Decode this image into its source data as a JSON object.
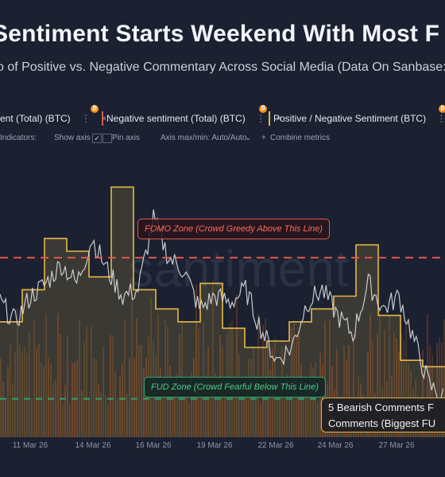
{
  "header": {
    "title": "Sentiment Starts Weekend With Most F",
    "subtitle": "o of Positive vs. Negative Commentary Across Social Media (Data On Sanbase: h"
  },
  "metrics": [
    {
      "label": "ent (Total) (BTC)",
      "accent": "#e8a23a"
    },
    {
      "label": "Negative sentiment (Total) (BTC)",
      "accent": "#e0584c"
    },
    {
      "label": "Positive / Negative Sentiment (BTC)",
      "accent": "#e8b84a"
    }
  ],
  "options": {
    "indicators": "Indicators:",
    "show_axis": "Show axis",
    "pin_axis": "Pin axis",
    "axis_maxmin": "Axis max/min: Auto/Auto",
    "combine": "Combine metrics",
    "check_mark": "✓"
  },
  "annotations": {
    "fomo": "FOMO Zone (Crowd Greedy Above This Line)",
    "fud": "FUD Zone (Crowd Fearful Below This Line)",
    "callout_line1": "5 Bearish Comments F",
    "callout_line2": "Comments (Biggest FU"
  },
  "chart_data": {
    "type": "line",
    "x_ticks": [
      "11 Mar 26",
      "14 Mar 26",
      "16 Mar 26",
      "19 Mar 26",
      "22 Mar 26",
      "24 Mar 26",
      "27 Mar 26"
    ],
    "ratio_step": {
      "name": "Positive / Negative Sentiment (BTC)",
      "color": "#e8b84a",
      "x": [
        0,
        1,
        2,
        3,
        4,
        5,
        6,
        7,
        8,
        9,
        10,
        11,
        12,
        13,
        14,
        15,
        16,
        17,
        18,
        19
      ],
      "values": [
        2.6,
        3.1,
        3.9,
        3.7,
        3.3,
        4.7,
        3.1,
        2.8,
        2.6,
        3.2,
        2.5,
        2.2,
        2.3,
        2.6,
        2.8,
        3.0,
        3.8,
        2.7,
        2.0,
        1.9
      ]
    },
    "sentiment_line": {
      "color": "#d9dbe0",
      "values": [
        2.9,
        2.6,
        3.0,
        3.2,
        3.5,
        3.2,
        3.9,
        3.4,
        3.0,
        3.1,
        4.2,
        3.6,
        3.4,
        2.8,
        3.0,
        2.9,
        3.1,
        2.5,
        2.0,
        2.2,
        2.9,
        3.1,
        2.7,
        2.4,
        3.2,
        2.8,
        3.0,
        2.3,
        1.6,
        1.4
      ]
    },
    "fomo_level": 3.6,
    "fud_level": 1.4,
    "ylim": [
      0.8,
      5.2
    ]
  }
}
